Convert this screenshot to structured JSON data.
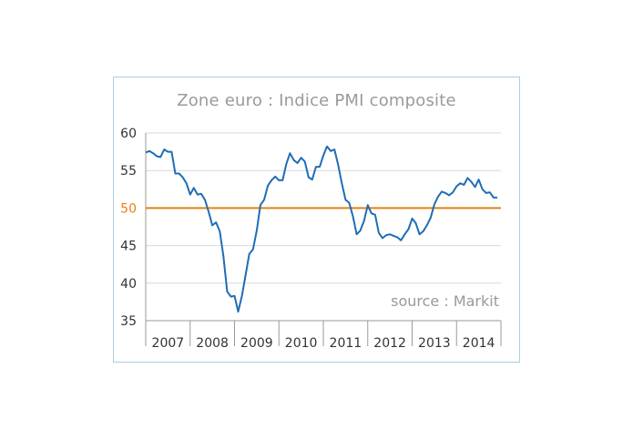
{
  "chart_data": {
    "type": "line",
    "title": "Zone euro : Indice PMI composite",
    "annotation": "source : Markit",
    "xlabel": "",
    "ylabel": "",
    "ylim": [
      35,
      60
    ],
    "yticks": [
      "60",
      "55",
      "50",
      "45",
      "40",
      "35"
    ],
    "xticks": [
      "2007",
      "2008",
      "2009",
      "2010",
      "2011",
      "2012",
      "2013",
      "2014"
    ],
    "xlim": [
      2007.0,
      2014.917
    ],
    "grid": "horizontal",
    "reference_line": {
      "value": 50,
      "color": "#e8820e"
    },
    "line_color": "#1f6db5",
    "series": [
      {
        "x": [
          2007.0,
          2007.083,
          2007.167,
          2007.25,
          2007.333,
          2007.417,
          2007.5,
          2007.583,
          2007.667,
          2007.75,
          2007.833,
          2007.917,
          2008.0,
          2008.083,
          2008.167,
          2008.25,
          2008.333,
          2008.417,
          2008.5,
          2008.583,
          2008.667,
          2008.75,
          2008.833,
          2008.917,
          2009.0,
          2009.083,
          2009.167,
          2009.25,
          2009.333,
          2009.417,
          2009.5,
          2009.583,
          2009.667,
          2009.75,
          2009.833,
          2009.917,
          2010.0,
          2010.083,
          2010.167,
          2010.25,
          2010.333,
          2010.417,
          2010.5,
          2010.583,
          2010.667,
          2010.75,
          2010.833,
          2010.917,
          2011.0,
          2011.083,
          2011.167,
          2011.25,
          2011.333,
          2011.417,
          2011.5,
          2011.583,
          2011.667,
          2011.75,
          2011.833,
          2011.917,
          2012.0,
          2012.083,
          2012.167,
          2012.25,
          2012.333,
          2012.417,
          2012.5,
          2012.583,
          2012.667,
          2012.75,
          2012.833,
          2012.917,
          2013.0,
          2013.083,
          2013.167,
          2013.25,
          2013.333,
          2013.417,
          2013.5,
          2013.583,
          2013.667,
          2013.75,
          2013.833,
          2013.917,
          2014.0,
          2014.083,
          2014.167,
          2014.25,
          2014.333,
          2014.417,
          2014.5,
          2014.583,
          2014.667,
          2014.75,
          2014.833,
          2014.917
        ],
        "y": [
          57.4,
          57.6,
          57.3,
          56.9,
          56.8,
          57.8,
          57.5,
          57.5,
          54.6,
          54.6,
          54.1,
          53.3,
          51.8,
          52.7,
          51.8,
          51.9,
          51.1,
          49.5,
          47.7,
          48.1,
          46.9,
          43.6,
          38.9,
          38.2,
          38.3,
          36.2,
          38.3,
          41.1,
          43.9,
          44.5,
          47.0,
          50.4,
          51.1,
          53.0,
          53.7,
          54.2,
          53.7,
          53.7,
          55.9,
          57.3,
          56.4,
          56.0,
          56.7,
          56.2,
          54.1,
          53.8,
          55.5,
          55.5,
          57.0,
          58.2,
          57.6,
          57.8,
          55.8,
          53.3,
          51.1,
          50.7,
          48.9,
          46.5,
          47.0,
          48.3,
          50.4,
          49.3,
          49.1,
          46.7,
          46.0,
          46.4,
          46.5,
          46.3,
          46.1,
          45.7,
          46.5,
          47.2,
          48.6,
          48.0,
          46.5,
          46.9,
          47.7,
          48.7,
          50.5,
          51.5,
          52.2,
          52.0,
          51.7,
          52.1,
          52.9,
          53.3,
          53.1,
          54.0,
          53.5,
          52.8,
          53.8,
          52.5,
          52.0,
          52.1,
          51.4,
          51.4
        ]
      }
    ]
  }
}
